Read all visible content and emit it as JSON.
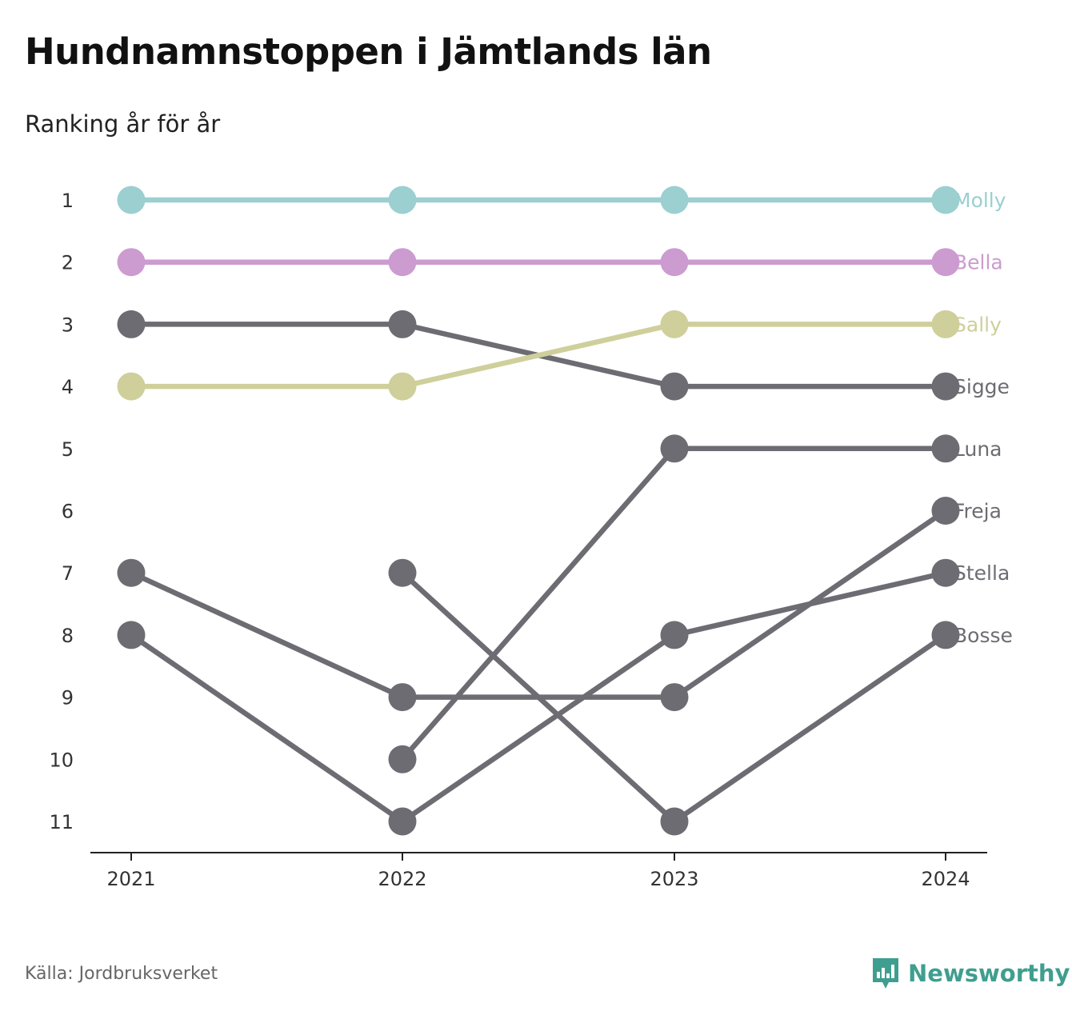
{
  "title": "Hundnamnstoppen i Jämtlands län",
  "subtitle": "Ranking år för år",
  "source": "Källa: Jordbruksverket",
  "brand": "Newsworthy",
  "icons": {
    "brand_logo": "chart-bubble-icon"
  },
  "colors": {
    "highlight_molly": "#9bcfd0",
    "highlight_bella": "#cc9bd0",
    "highlight_sally": "#cfcf9b",
    "default": "#6d6c72",
    "axis": "#222222",
    "brand": "#3f9e8f"
  },
  "chart_data": {
    "type": "line",
    "x": [
      "2021",
      "2022",
      "2023",
      "2024"
    ],
    "yticks": [
      1,
      2,
      3,
      4,
      5,
      6,
      7,
      8,
      9,
      10,
      11
    ],
    "ylim": [
      11,
      1
    ],
    "y_inverted": true,
    "series": [
      {
        "name": "Molly",
        "values": [
          1,
          1,
          1,
          1
        ],
        "color": "#9bcfd0"
      },
      {
        "name": "Bella",
        "values": [
          2,
          2,
          2,
          2
        ],
        "color": "#cc9bd0"
      },
      {
        "name": "Sally",
        "values": [
          4,
          4,
          3,
          3
        ],
        "color": "#cfcf9b"
      },
      {
        "name": "Sigge",
        "values": [
          3,
          3,
          4,
          4
        ],
        "color": "#6d6c72"
      },
      {
        "name": "Luna",
        "values": [
          null,
          10,
          5,
          5
        ],
        "color": "#6d6c72"
      },
      {
        "name": "Freja",
        "values": [
          7,
          9,
          9,
          6
        ],
        "color": "#6d6c72"
      },
      {
        "name": "Stella",
        "values": [
          8,
          11,
          8,
          7
        ],
        "color": "#6d6c72"
      },
      {
        "name": "Bosse",
        "values": [
          null,
          7,
          11,
          8
        ],
        "color": "#6d6c72"
      }
    ]
  }
}
